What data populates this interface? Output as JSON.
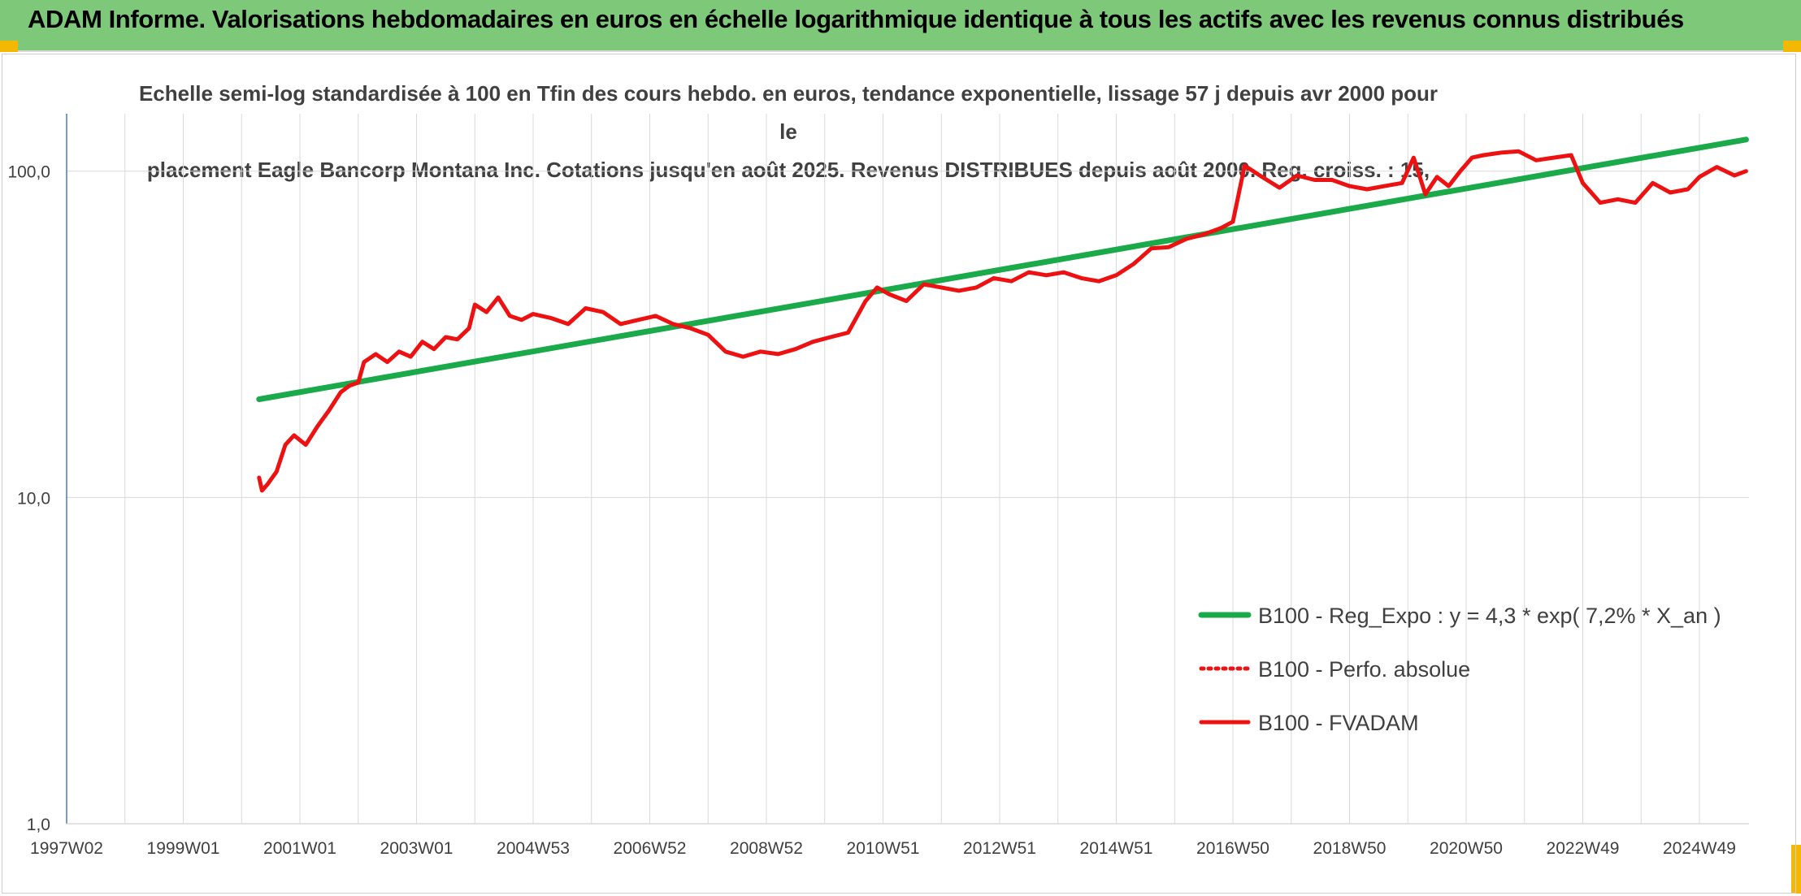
{
  "header": {
    "title": "ADAM Informe. Valorisations hebdomadaires en euros en échelle logarithmique identique à tous les actifs avec les revenus connus distribués"
  },
  "colors": {
    "banner": "#7ec87a",
    "trend": "#1aaa4a",
    "fvadam": "#ee1111",
    "perfo": "#ee1111",
    "grid": "#d9d9d9",
    "axis": "#4a7ab8",
    "corner": "#f5b800"
  },
  "chart_data": {
    "type": "line",
    "title_lines": [
      "Echelle semi-log standardisée à 100 en Tfin des cours hebdo. en euros, tendance exponentielle, lissage 57 j depuis avr 2000 pour le",
      "placement Eagle Bancorp Montana Inc. Cotations jusqu'en août 2025. Revenus DISTRIBUES depuis août 2000. Reg. croiss. : 15,"
    ],
    "y_scale": "log",
    "ylim": [
      1,
      150
    ],
    "y_ticks": [
      {
        "value": 1,
        "label": "1,0"
      },
      {
        "value": 10,
        "label": "10,0"
      },
      {
        "value": 100,
        "label": "100,0"
      }
    ],
    "xlim": [
      1997.0,
      2025.85
    ],
    "x_ticks": [
      {
        "value": 1997.0,
        "label": "1997W02"
      },
      {
        "value": 1999.0,
        "label": "1999W01"
      },
      {
        "value": 2001.0,
        "label": "2001W01"
      },
      {
        "value": 2003.0,
        "label": "2003W01"
      },
      {
        "value": 2005.0,
        "label": "2004W53"
      },
      {
        "value": 2007.0,
        "label": "2006W52"
      },
      {
        "value": 2009.0,
        "label": "2008W52"
      },
      {
        "value": 2011.0,
        "label": "2010W51"
      },
      {
        "value": 2013.0,
        "label": "2012W51"
      },
      {
        "value": 2015.0,
        "label": "2014W51"
      },
      {
        "value": 2017.0,
        "label": "2016W50"
      },
      {
        "value": 2019.0,
        "label": "2018W50"
      },
      {
        "value": 2021.0,
        "label": "2020W50"
      },
      {
        "value": 2023.0,
        "label": "2022W49"
      },
      {
        "value": 2025.0,
        "label": "2024W49"
      }
    ],
    "grid": true,
    "legend_position": "bottom-right",
    "series": [
      {
        "name": "B100 - Reg_Expo : y = 4,3 * exp( 7,2% *  X_an )",
        "style": "solid",
        "x": [
          2000.3,
          2025.8
        ],
        "y": [
          20.0,
          125.0
        ]
      },
      {
        "name": "B100 - Perfo. absolue",
        "style": "dotted",
        "x": [],
        "y": []
      },
      {
        "name": "B100 - FVADAM",
        "style": "solid",
        "x": [
          2000.3,
          2000.35,
          2000.45,
          2000.6,
          2000.75,
          2000.9,
          2001.1,
          2001.3,
          2001.5,
          2001.7,
          2001.85,
          2002.0,
          2002.1,
          2002.3,
          2002.5,
          2002.7,
          2002.9,
          2003.1,
          2003.3,
          2003.5,
          2003.7,
          2003.9,
          2004.0,
          2004.2,
          2004.4,
          2004.6,
          2004.8,
          2005.0,
          2005.3,
          2005.6,
          2005.9,
          2006.2,
          2006.5,
          2006.8,
          2007.1,
          2007.4,
          2007.7,
          2008.0,
          2008.3,
          2008.6,
          2008.9,
          2009.2,
          2009.5,
          2009.8,
          2010.1,
          2010.4,
          2010.7,
          2010.9,
          2011.1,
          2011.4,
          2011.7,
          2012.0,
          2012.3,
          2012.6,
          2012.9,
          2013.2,
          2013.5,
          2013.8,
          2014.1,
          2014.4,
          2014.7,
          2015.0,
          2015.3,
          2015.6,
          2015.9,
          2016.2,
          2016.5,
          2016.8,
          2017.0,
          2017.2,
          2017.5,
          2017.8,
          2018.1,
          2018.4,
          2018.7,
          2019.0,
          2019.3,
          2019.6,
          2019.9,
          2020.1,
          2020.3,
          2020.5,
          2020.7,
          2020.9,
          2021.1,
          2021.3,
          2021.6,
          2021.9,
          2022.2,
          2022.5,
          2022.8,
          2023.0,
          2023.3,
          2023.6,
          2023.9,
          2024.2,
          2024.5,
          2024.8,
          2025.0,
          2025.3,
          2025.6,
          2025.8
        ],
        "y": [
          11.5,
          10.5,
          11.0,
          12.0,
          14.5,
          15.5,
          14.5,
          16.5,
          18.5,
          21.0,
          22.0,
          22.5,
          26.0,
          27.5,
          26.0,
          28.0,
          27.0,
          30.0,
          28.5,
          31.0,
          30.5,
          33.0,
          39.0,
          37.0,
          41.0,
          36.0,
          35.0,
          36.5,
          35.5,
          34.0,
          38.0,
          37.0,
          34.0,
          35.0,
          36.0,
          34.0,
          33.0,
          31.5,
          28.0,
          27.0,
          28.0,
          27.5,
          28.5,
          30.0,
          31.0,
          32.0,
          40.0,
          44.0,
          42.0,
          40.0,
          45.0,
          44.0,
          43.0,
          44.0,
          47.0,
          46.0,
          49.0,
          48.0,
          49.0,
          47.0,
          46.0,
          48.0,
          52.0,
          58.0,
          58.5,
          62.0,
          64.0,
          67.0,
          70.0,
          104.0,
          96.0,
          89.0,
          97.0,
          94.0,
          94.0,
          90.0,
          88.0,
          90.0,
          92.0,
          110.0,
          85.0,
          96.0,
          90.0,
          100.0,
          110.0,
          112.0,
          114.0,
          115.0,
          108.0,
          110.0,
          112.0,
          92.0,
          80.0,
          82.0,
          80.0,
          92.0,
          86.0,
          88.0,
          96.0,
          103.0,
          97.0,
          100.0
        ]
      }
    ]
  }
}
